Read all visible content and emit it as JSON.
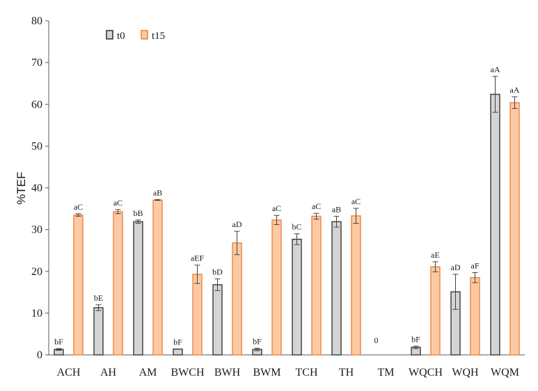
{
  "chart_data": {
    "type": "bar",
    "title": "",
    "xlabel": "",
    "ylabel": "%TEF",
    "ylim": [
      0,
      80
    ],
    "yticks": [
      0,
      10,
      20,
      30,
      40,
      50,
      60,
      70,
      80
    ],
    "grid": false,
    "legend_position": "top-left",
    "categories": [
      "ACH",
      "AH",
      "AM",
      "BWCH",
      "BWH",
      "BWM",
      "TCH",
      "TH",
      "TM",
      "WQCH",
      "WQH",
      "WQM"
    ],
    "series": [
      {
        "name": "t0",
        "color": "#d4d4d4",
        "stroke": "#2b2b2b",
        "values": [
          1.3,
          11.3,
          31.9,
          1.4,
          16.8,
          1.3,
          27.7,
          31.9,
          0,
          1.8,
          15.1,
          62.4
        ],
        "errors": [
          0.2,
          0.7,
          0.4,
          0,
          1.4,
          0.3,
          1.3,
          1.3,
          0,
          0.3,
          4.2,
          4.3
        ],
        "labels": [
          "bF",
          "bE",
          "bB",
          "bF",
          "bD",
          "bF",
          "bC",
          "aB",
          "0",
          "bF",
          "aD",
          "aA"
        ]
      },
      {
        "name": "t15",
        "color": "#fcc9a4",
        "stroke": "#ed7d31",
        "values": [
          33.5,
          34.3,
          37.1,
          19.3,
          26.8,
          32.3,
          33.2,
          33.3,
          null,
          21.1,
          18.5,
          60.4
        ],
        "errors": [
          0.3,
          0.5,
          0.1,
          2.2,
          2.8,
          1.1,
          0.7,
          1.8,
          null,
          1.2,
          1.2,
          1.4
        ],
        "labels": [
          "aC",
          "aC",
          "aB",
          "aEF",
          "aD",
          "aC",
          "aC",
          "aC",
          null,
          "aE",
          "aF",
          "aA"
        ]
      }
    ]
  }
}
